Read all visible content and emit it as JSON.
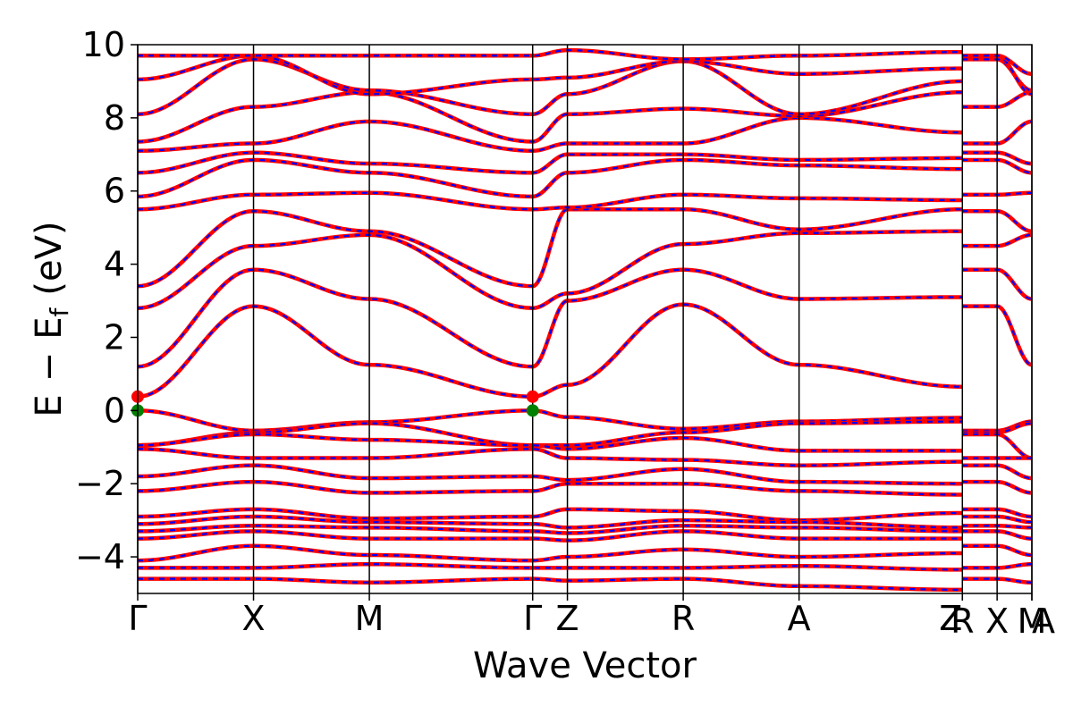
{
  "chart_data": {
    "type": "line",
    "title": "",
    "xlabel": "Wave Vector",
    "ylabel_parts": [
      "E",
      "−",
      "E",
      "f",
      "(eV)"
    ],
    "ylim": [
      -5,
      10
    ],
    "yticks": [
      -4,
      -2,
      0,
      2,
      4,
      6,
      8,
      10
    ],
    "ytick_labels": [
      "−4",
      "−2",
      "0",
      "2",
      "4",
      "6",
      "8",
      "10"
    ],
    "kpath_labels": [
      "Γ",
      "X",
      "M",
      "Γ",
      "Z",
      "R",
      "A",
      "Z",
      "R",
      "X",
      "M",
      "A"
    ],
    "kpath_positions": [
      0.0,
      1.0,
      2.0,
      3.41,
      3.71,
      4.71,
      5.71,
      7.12,
      7.12,
      7.42,
      7.72,
      7.72
    ],
    "segment_boundaries": [
      0.0,
      1.0,
      2.0,
      3.41,
      3.71,
      4.71,
      5.71,
      7.12,
      7.42,
      7.72
    ],
    "grid": false,
    "legend": "none",
    "colors": {
      "solid_bands": "#ff0000",
      "dashed_bands": "#0000ff",
      "vbm_marker": "#008000",
      "cbm_marker": "#ff0000",
      "vertical_lines": "#000000"
    },
    "band_edges": [
      {
        "name": "",
        "type": "vbm",
        "k": 0.0,
        "energy": 0.0
      },
      {
        "name": "",
        "type": "vbm",
        "k": 3.41,
        "energy": 0.0
      },
      {
        "name": "",
        "type": "cbm",
        "k": 0.0,
        "energy": 0.38
      },
      {
        "name": "",
        "type": "cbm",
        "k": 3.41,
        "energy": 0.38
      }
    ],
    "bands": [
      {
        "values": [
          0.0,
          -0.55,
          -0.32,
          0.0,
          -0.18,
          -0.5,
          -0.3,
          -0.2,
          -0.55,
          -0.55,
          -0.3,
          -0.3
        ]
      },
      {
        "values": [
          -0.95,
          -0.6,
          -0.35,
          -0.95,
          -0.95,
          -0.6,
          -0.35,
          -0.3,
          -0.6,
          -0.6,
          -0.35,
          -0.35
        ]
      },
      {
        "values": [
          -0.95,
          -0.65,
          -0.8,
          -0.95,
          -1.05,
          -0.75,
          -1.1,
          -1.1,
          -0.65,
          -0.65,
          -1.3,
          -1.3
        ]
      },
      {
        "values": [
          -1.05,
          -1.3,
          -1.3,
          -1.05,
          -1.3,
          -1.35,
          -1.5,
          -1.4,
          -1.3,
          -1.3,
          -1.3,
          -1.3
        ]
      },
      {
        "values": [
          -1.8,
          -1.5,
          -1.85,
          -1.8,
          -1.9,
          -1.6,
          -1.95,
          -2.0,
          -1.5,
          -1.5,
          -1.85,
          -1.85
        ]
      },
      {
        "values": [
          -2.2,
          -1.95,
          -2.25,
          -2.2,
          -2.0,
          -2.0,
          -2.2,
          -2.3,
          -1.95,
          -1.95,
          -2.25,
          -2.25
        ]
      },
      {
        "values": [
          -2.9,
          -2.7,
          -2.95,
          -2.9,
          -2.7,
          -2.75,
          -3.0,
          -2.8,
          -2.7,
          -2.7,
          -2.9,
          -2.9
        ]
      },
      {
        "values": [
          -3.1,
          -2.9,
          -3.05,
          -3.1,
          -3.2,
          -3.0,
          -3.05,
          -3.2,
          -2.9,
          -2.9,
          -3.05,
          -3.05
        ]
      },
      {
        "values": [
          -3.3,
          -3.15,
          -3.2,
          -3.3,
          -3.35,
          -3.15,
          -3.2,
          -3.3,
          -3.15,
          -3.15,
          -3.2,
          -3.2
        ]
      },
      {
        "values": [
          -3.5,
          -3.3,
          -3.5,
          -3.5,
          -3.55,
          -3.3,
          -3.5,
          -3.5,
          -3.3,
          -3.3,
          -3.5,
          -3.5
        ]
      },
      {
        "values": [
          -4.1,
          -3.7,
          -3.95,
          -4.1,
          -4.0,
          -3.8,
          -4.0,
          -3.9,
          -3.7,
          -3.7,
          -3.95,
          -3.95
        ]
      },
      {
        "values": [
          -4.3,
          -4.3,
          -4.2,
          -4.3,
          -4.3,
          -4.3,
          -4.25,
          -4.35,
          -4.3,
          -4.3,
          -4.2,
          -4.2
        ]
      },
      {
        "values": [
          -4.6,
          -4.6,
          -4.7,
          -4.6,
          -4.65,
          -4.6,
          -4.8,
          -4.9,
          -4.6,
          -4.6,
          -4.7,
          -4.7
        ]
      },
      {
        "values": [
          0.38,
          2.85,
          1.25,
          0.38,
          0.7,
          2.9,
          1.25,
          0.65,
          2.85,
          2.85,
          1.25,
          1.25
        ]
      },
      {
        "values": [
          1.2,
          3.85,
          3.05,
          1.2,
          3.0,
          3.85,
          3.05,
          3.1,
          3.85,
          3.85,
          3.05,
          3.05
        ]
      },
      {
        "values": [
          2.8,
          4.5,
          4.8,
          2.8,
          3.2,
          4.55,
          4.85,
          4.9,
          4.5,
          4.5,
          4.8,
          4.8
        ]
      },
      {
        "values": [
          3.4,
          5.45,
          4.9,
          3.4,
          5.5,
          5.5,
          4.95,
          5.5,
          5.45,
          5.45,
          4.9,
          4.9
        ]
      },
      {
        "values": [
          5.5,
          5.9,
          5.95,
          5.5,
          5.55,
          5.9,
          5.8,
          5.75,
          5.9,
          5.9,
          5.95,
          5.95
        ]
      },
      {
        "values": [
          5.85,
          6.85,
          6.5,
          5.85,
          6.5,
          6.85,
          6.7,
          6.6,
          6.85,
          6.85,
          6.5,
          6.5
        ]
      },
      {
        "values": [
          6.5,
          7.05,
          6.75,
          6.5,
          7.0,
          7.0,
          6.85,
          6.9,
          7.05,
          7.05,
          6.75,
          6.75
        ]
      },
      {
        "values": [
          7.1,
          7.3,
          7.9,
          7.1,
          7.3,
          7.3,
          8.0,
          7.6,
          7.3,
          7.3,
          7.9,
          7.9
        ]
      },
      {
        "values": [
          7.35,
          8.3,
          8.7,
          7.35,
          8.1,
          8.25,
          8.05,
          8.7,
          8.3,
          8.3,
          8.7,
          8.7
        ]
      },
      {
        "values": [
          8.1,
          9.6,
          8.75,
          8.1,
          8.65,
          9.55,
          8.1,
          9.0,
          9.6,
          9.6,
          8.75,
          8.75
        ]
      },
      {
        "values": [
          9.05,
          9.7,
          8.65,
          9.05,
          9.1,
          9.55,
          9.2,
          9.35,
          9.7,
          9.7,
          8.65,
          8.65
        ]
      },
      {
        "values": [
          9.7,
          9.7,
          9.7,
          9.7,
          9.85,
          9.6,
          9.7,
          9.8,
          9.7,
          9.7,
          9.2,
          9.2
        ]
      }
    ]
  }
}
